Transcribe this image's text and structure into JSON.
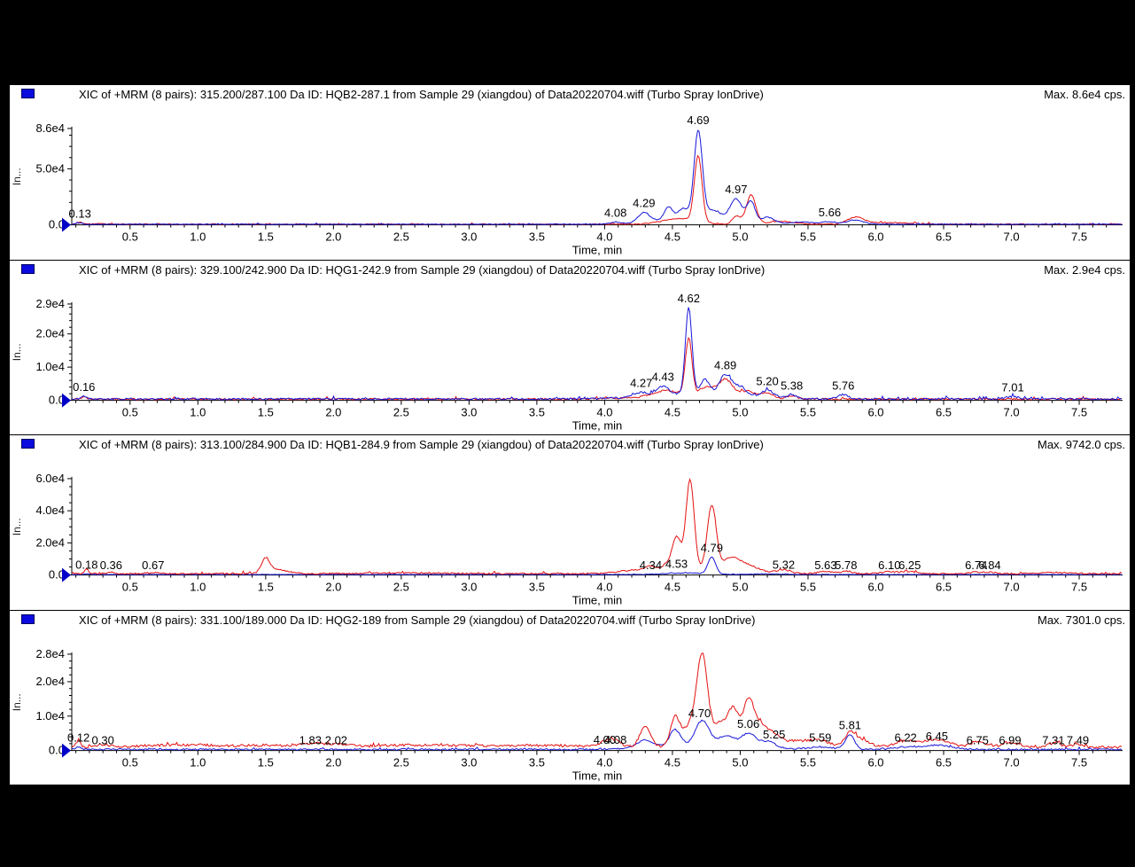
{
  "app": {
    "background": "#000000",
    "pane_background": "#ffffff"
  },
  "colors": {
    "trace_blue": "#1717d8",
    "trace_red": "#e51111",
    "axis": "#000000",
    "pane_button_blue": "#0b0bdf",
    "origin_marker_blue": "#0000c8"
  },
  "axis": {
    "x_label": "Time, min",
    "y_axis_label": "In...",
    "x_min": 0.07,
    "x_max": 7.82,
    "x_major_step": 0.5,
    "x_minor_step": 0.1,
    "x_tick_labels": [
      "0.5",
      "1.0",
      "1.5",
      "2.0",
      "2.5",
      "3.0",
      "3.5",
      "4.0",
      "4.5",
      "5.0",
      "5.5",
      "6.0",
      "6.5",
      "7.0",
      "7.5"
    ]
  },
  "chart_data": [
    {
      "type": "line",
      "title": "XIC of +MRM (8 pairs): 315.200/287.100 Da ID: HQB2-287.1 from Sample 29 (xiangdou) of Data20220704.wiff (Turbo Spray IonDrive)",
      "max_label": "Max. 8.6e4 cps.",
      "xlabel": "Time, min",
      "ylabel": "In...",
      "y_top": 86000,
      "y_minor_step": 10000,
      "y_ticks": [
        {
          "value": 86000,
          "label": "8.6e4"
        },
        {
          "value": 50000,
          "label": "5.0e4"
        },
        {
          "value": 0,
          "label": "0.0"
        }
      ],
      "peak_labels": [
        {
          "t": 0.13,
          "label": "0.13"
        },
        {
          "t": 4.08,
          "label": "4.08"
        },
        {
          "t": 4.29,
          "label": "4.29"
        },
        {
          "t": 4.69,
          "label": "4.69"
        },
        {
          "t": 4.97,
          "label": "4.97"
        },
        {
          "t": 5.66,
          "label": "5.66"
        }
      ],
      "series": [
        {
          "name": "red",
          "color": "#e51111",
          "seed": 11,
          "baseline": 500,
          "noise": 900,
          "peaks": [
            [
              0.13,
              1800,
              0.02
            ],
            [
              0.3,
              400,
              0.1
            ],
            [
              4.55,
              5000,
              0.12
            ],
            [
              4.69,
              59000,
              0.028
            ],
            [
              4.97,
              7000,
              0.03
            ],
            [
              5.08,
              26000,
              0.035
            ],
            [
              5.3,
              2500,
              0.1
            ],
            [
              5.85,
              6000,
              0.06
            ],
            [
              6.1,
              1500,
              0.15
            ]
          ]
        },
        {
          "name": "blue",
          "color": "#1717d8",
          "seed": 12,
          "baseline": 400,
          "noise": 800,
          "peaks": [
            [
              0.13,
              1200,
              0.02
            ],
            [
              4.08,
              1500,
              0.03
            ],
            [
              4.29,
              8500,
              0.04
            ],
            [
              4.47,
              11000,
              0.03
            ],
            [
              4.58,
              9000,
              0.04
            ],
            [
              4.69,
              78000,
              0.03
            ],
            [
              4.8,
              9000,
              0.06
            ],
            [
              4.97,
              21000,
              0.045
            ],
            [
              5.08,
              19000,
              0.03
            ],
            [
              5.2,
              6000,
              0.05
            ],
            [
              5.45,
              2000,
              0.1
            ],
            [
              5.66,
              2200,
              0.05
            ],
            [
              5.85,
              4000,
              0.06
            ],
            [
              4.6,
              5000,
              0.25
            ]
          ]
        }
      ]
    },
    {
      "type": "line",
      "title": "XIC of +MRM (8 pairs): 329.100/242.900 Da ID: HQG1-242.9 from Sample 29 (xiangdou) of Data20220704.wiff (Turbo Spray IonDrive)",
      "max_label": "Max. 2.9e4 cps.",
      "xlabel": "Time, min",
      "ylabel": "In...",
      "y_top": 29000,
      "y_minor_step": 2000,
      "y_ticks": [
        {
          "value": 29000,
          "label": "2.9e4"
        },
        {
          "value": 20000,
          "label": "2.0e4"
        },
        {
          "value": 10000,
          "label": "1.0e4"
        },
        {
          "value": 0,
          "label": "0.0"
        }
      ],
      "peak_labels": [
        {
          "t": 0.16,
          "label": "0.16"
        },
        {
          "t": 4.27,
          "label": "4.27"
        },
        {
          "t": 4.43,
          "label": "4.43"
        },
        {
          "t": 4.62,
          "label": "4.62"
        },
        {
          "t": 4.89,
          "label": "4.89"
        },
        {
          "t": 5.2,
          "label": "5.20"
        },
        {
          "t": 5.38,
          "label": "5.38"
        },
        {
          "t": 5.76,
          "label": "5.76"
        },
        {
          "t": 7.01,
          "label": "7.01"
        }
      ],
      "series": [
        {
          "name": "red",
          "color": "#e51111",
          "seed": 21,
          "baseline": 350,
          "noise": 550,
          "peaks": [
            [
              0.16,
              700,
              0.02
            ],
            [
              4.45,
              1500,
              0.08
            ],
            [
              4.62,
              17000,
              0.024
            ],
            [
              4.75,
              2500,
              0.05
            ],
            [
              4.89,
              5200,
              0.05
            ],
            [
              5.05,
              2000,
              0.06
            ],
            [
              5.2,
              1500,
              0.05
            ],
            [
              5.38,
              900,
              0.04
            ],
            [
              4.6,
              1200,
              0.3
            ]
          ]
        },
        {
          "name": "blue",
          "color": "#1717d8",
          "seed": 22,
          "baseline": 380,
          "noise": 560,
          "peaks": [
            [
              0.16,
              900,
              0.02
            ],
            [
              4.27,
              1200,
              0.05
            ],
            [
              4.43,
              2600,
              0.04
            ],
            [
              4.62,
              26000,
              0.024
            ],
            [
              4.74,
              4500,
              0.035
            ],
            [
              4.89,
              6200,
              0.045
            ],
            [
              5.0,
              3000,
              0.05
            ],
            [
              5.2,
              2400,
              0.05
            ],
            [
              5.38,
              1200,
              0.04
            ],
            [
              5.76,
              1300,
              0.04
            ],
            [
              7.01,
              700,
              0.05
            ],
            [
              4.6,
              1500,
              0.3
            ]
          ]
        }
      ]
    },
    {
      "type": "line",
      "title": "XIC of +MRM (8 pairs): 313.100/284.900 Da ID: HQB1-284.9 from Sample 29 (xiangdou) of Data20220704.wiff (Turbo Spray IonDrive)",
      "max_label": "Max. 9742.0 cps.",
      "xlabel": "Time, min",
      "ylabel": "In...",
      "y_top": 60000,
      "y_minor_step": 5000,
      "y_ticks": [
        {
          "value": 60000,
          "label": "6.0e4"
        },
        {
          "value": 40000,
          "label": "4.0e4"
        },
        {
          "value": 20000,
          "label": "2.0e4"
        },
        {
          "value": 0,
          "label": "0.0"
        }
      ],
      "peak_labels": [
        {
          "t": 0.18,
          "label": "0.18"
        },
        {
          "t": 0.36,
          "label": "0.36"
        },
        {
          "t": 0.67,
          "label": "0.67"
        },
        {
          "t": 4.34,
          "label": "4.34"
        },
        {
          "t": 4.53,
          "label": "4.53"
        },
        {
          "t": 4.79,
          "label": "4.79"
        },
        {
          "t": 5.32,
          "label": "5.32"
        },
        {
          "t": 5.63,
          "label": "5.63"
        },
        {
          "t": 5.78,
          "label": "5.78"
        },
        {
          "t": 6.1,
          "label": "6.10"
        },
        {
          "t": 6.25,
          "label": "6.25"
        },
        {
          "t": 6.74,
          "label": "6.74"
        },
        {
          "t": 6.84,
          "label": "6.84"
        }
      ],
      "series": [
        {
          "name": "blue",
          "color": "#1717d8",
          "seed": 32,
          "baseline": 250,
          "noise": 400,
          "peaks": [
            [
              0.18,
              500,
              0.02
            ],
            [
              4.79,
              10500,
              0.028
            ],
            [
              4.6,
              1000,
              0.15
            ],
            [
              5.2,
              500,
              0.1
            ]
          ]
        },
        {
          "name": "red",
          "color": "#e51111",
          "seed": 31,
          "baseline": 800,
          "noise": 850,
          "peaks": [
            [
              0.18,
              2800,
              0.015
            ],
            [
              0.36,
              700,
              0.03
            ],
            [
              0.67,
              600,
              0.05
            ],
            [
              1.5,
              8500,
              0.03
            ],
            [
              1.58,
              2500,
              0.08
            ],
            [
              2.5,
              400,
              0.3
            ],
            [
              4.2,
              1500,
              0.1
            ],
            [
              4.34,
              3000,
              0.04
            ],
            [
              4.45,
              3500,
              0.03
            ],
            [
              4.53,
              21000,
              0.033
            ],
            [
              4.63,
              56000,
              0.03
            ],
            [
              4.79,
              40000,
              0.033
            ],
            [
              4.93,
              7000,
              0.06
            ],
            [
              5.05,
              4000,
              0.08
            ],
            [
              5.32,
              2200,
              0.05
            ],
            [
              5.63,
              1500,
              0.05
            ],
            [
              5.78,
              1500,
              0.04
            ],
            [
              6.1,
              1200,
              0.06
            ],
            [
              6.25,
              1200,
              0.06
            ],
            [
              6.74,
              1000,
              0.04
            ],
            [
              6.84,
              1000,
              0.04
            ],
            [
              7.3,
              700,
              0.1
            ],
            [
              4.7,
              2500,
              0.3
            ]
          ]
        }
      ]
    },
    {
      "type": "line",
      "title": "XIC of +MRM (8 pairs): 331.100/189.000 Da ID: HQG2-189 from Sample 29 (xiangdou) of Data20220704.wiff (Turbo Spray IonDrive)",
      "max_label": "Max. 7301.0 cps.",
      "xlabel": "Time, min",
      "ylabel": "In...",
      "y_top": 28000,
      "y_minor_step": 2000,
      "y_ticks": [
        {
          "value": 28000,
          "label": "2.8e4"
        },
        {
          "value": 20000,
          "label": "2.0e4"
        },
        {
          "value": 10000,
          "label": "1.0e4"
        },
        {
          "value": 0,
          "label": "0.0"
        }
      ],
      "peak_labels": [
        {
          "t": 0.12,
          "label": "0.12"
        },
        {
          "t": 0.3,
          "label": "0.30"
        },
        {
          "t": 1.83,
          "label": "1.83"
        },
        {
          "t": 2.02,
          "label": "2.02"
        },
        {
          "t": 4.0,
          "label": "4.00"
        },
        {
          "t": 4.08,
          "label": "4.08"
        },
        {
          "t": 4.7,
          "label": "4.70"
        },
        {
          "t": 5.06,
          "label": "5.06"
        },
        {
          "t": 5.25,
          "label": "5.25"
        },
        {
          "t": 5.59,
          "label": "5.59"
        },
        {
          "t": 5.81,
          "label": "5.81"
        },
        {
          "t": 6.22,
          "label": "6.22"
        },
        {
          "t": 6.45,
          "label": "6.45"
        },
        {
          "t": 6.75,
          "label": "6.75"
        },
        {
          "t": 6.99,
          "label": "6.99"
        },
        {
          "t": 7.31,
          "label": "7.31"
        },
        {
          "t": 7.49,
          "label": "7.49"
        }
      ],
      "series": [
        {
          "name": "blue",
          "color": "#1717d8",
          "seed": 42,
          "baseline": 300,
          "noise": 450,
          "peaks": [
            [
              0.12,
              700,
              0.02
            ],
            [
              4.3,
              2200,
              0.06
            ],
            [
              4.52,
              4800,
              0.04
            ],
            [
              4.72,
              7200,
              0.05
            ],
            [
              4.9,
              3000,
              0.06
            ],
            [
              5.06,
              4000,
              0.05
            ],
            [
              5.2,
              2000,
              0.06
            ],
            [
              5.81,
              4300,
              0.033
            ],
            [
              5.6,
              700,
              0.1
            ],
            [
              6.45,
              1200,
              0.1
            ],
            [
              6.22,
              700,
              0.08
            ],
            [
              4.7,
              1200,
              0.3
            ]
          ]
        },
        {
          "name": "red",
          "color": "#e51111",
          "seed": 41,
          "baseline": 900,
          "noise": 750,
          "peaks": [
            [
              0.12,
              2200,
              0.015
            ],
            [
              0.3,
              800,
              0.04
            ],
            [
              0.9,
              700,
              0.3
            ],
            [
              1.5,
              500,
              0.15
            ],
            [
              1.83,
              900,
              0.08
            ],
            [
              2.02,
              900,
              0.1
            ],
            [
              2.6,
              600,
              0.3
            ],
            [
              3.5,
              500,
              0.4
            ],
            [
              4.0,
              1500,
              0.04
            ],
            [
              4.08,
              1900,
              0.04
            ],
            [
              4.3,
              5800,
              0.04
            ],
            [
              4.52,
              8500,
              0.035
            ],
            [
              4.63,
              6000,
              0.05
            ],
            [
              4.72,
              26000,
              0.04
            ],
            [
              4.85,
              7000,
              0.05
            ],
            [
              4.95,
              10500,
              0.04
            ],
            [
              5.06,
              13000,
              0.04
            ],
            [
              5.15,
              6000,
              0.05
            ],
            [
              5.25,
              3000,
              0.05
            ],
            [
              5.4,
              1800,
              0.1
            ],
            [
              5.59,
              1800,
              0.08
            ],
            [
              5.81,
              3800,
              0.04
            ],
            [
              5.9,
              2000,
              0.06
            ],
            [
              6.22,
              1900,
              0.08
            ],
            [
              6.45,
              2200,
              0.09
            ],
            [
              6.75,
              1500,
              0.06
            ],
            [
              6.99,
              1500,
              0.06
            ],
            [
              7.31,
              1200,
              0.05
            ],
            [
              7.49,
              1000,
              0.04
            ]
          ]
        }
      ]
    }
  ]
}
